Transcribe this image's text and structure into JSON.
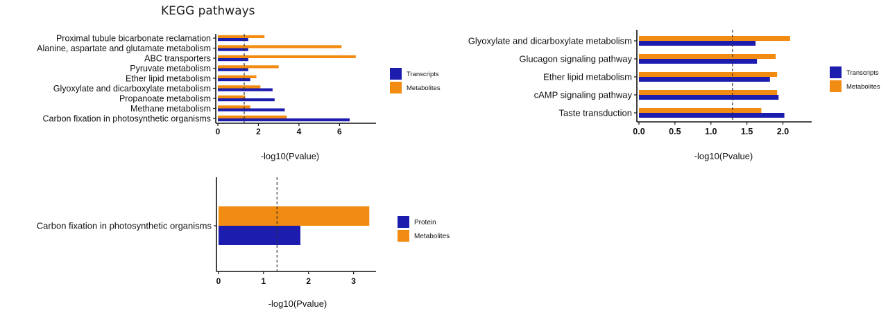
{
  "page_title": "KEGG pathways",
  "colors": {
    "transcripts": "#1c1caf",
    "metabolites": "#f28b11",
    "protein": "#1c1caf",
    "axis": "#111111",
    "threshold": "#333333"
  },
  "chart_data": [
    {
      "type": "bar",
      "orientation": "horizontal",
      "title": "KEGG pathways",
      "xlabel": "-log10(Pvalue)",
      "xticks": [
        0,
        2,
        4,
        6
      ],
      "xlim": [
        0,
        7.8
      ],
      "threshold": 1.3,
      "legend_position": "right",
      "categories": [
        "Proximal tubule bicarbonate reclamation",
        "Alanine, aspartate and glutamate metabolism",
        "ABC transporters",
        "Pyruvate metabolism",
        "Ether lipid metabolism",
        "Glyoxylate and dicarboxylate metabolism",
        "Propanoate metabolism",
        "Methane metabolism",
        "Carbon fixation in photosynthetic organisms"
      ],
      "series": [
        {
          "name": "Metabolites",
          "color": "#f28b11",
          "values": [
            2.3,
            6.1,
            6.8,
            3.0,
            1.9,
            2.1,
            1.35,
            1.6,
            3.4
          ]
        },
        {
          "name": "Transcripts",
          "color": "#1c1caf",
          "values": [
            1.5,
            1.5,
            1.5,
            1.5,
            1.6,
            2.7,
            2.8,
            3.3,
            6.5
          ]
        }
      ]
    },
    {
      "type": "bar",
      "orientation": "horizontal",
      "title": "",
      "xlabel": "-log10(Pvalue)",
      "xticks": [
        "0.0",
        "0.5",
        "1.0",
        "1.5",
        "2.0"
      ],
      "xlim": [
        0,
        2.4
      ],
      "threshold": 1.3,
      "legend_position": "right",
      "categories": [
        "Glyoxylate and dicarboxylate metabolism",
        "Glucagon signaling pathway",
        "Ether lipid metabolism",
        "cAMP signaling pathway",
        "Taste transduction"
      ],
      "series": [
        {
          "name": "Metabolites",
          "color": "#f28b11",
          "values": [
            2.1,
            1.9,
            1.92,
            1.92,
            1.7
          ]
        },
        {
          "name": "Transcripts",
          "color": "#1c1caf",
          "values": [
            1.62,
            1.64,
            1.82,
            1.94,
            2.02
          ]
        }
      ]
    },
    {
      "type": "bar",
      "orientation": "horizontal",
      "title": "",
      "xlabel": "-log10(Pvalue)",
      "xticks": [
        0,
        1,
        2,
        3
      ],
      "xlim": [
        0,
        3.5
      ],
      "threshold": 1.3,
      "legend_position": "right",
      "categories": [
        "Carbon fixation in photosynthetic organisms"
      ],
      "series": [
        {
          "name": "Metabolites",
          "color": "#f28b11",
          "values": [
            3.35
          ]
        },
        {
          "name": "Protein",
          "color": "#1c1caf",
          "values": [
            1.82
          ]
        }
      ]
    }
  ]
}
